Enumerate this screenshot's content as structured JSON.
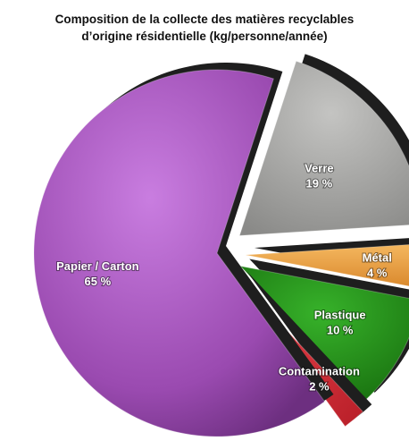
{
  "chart_data": {
    "type": "pie",
    "title_line1": "Composition de la collecte des matières recyclables",
    "title_line2": "d’origine résidentielle (kg/personne/année)",
    "slices": [
      {
        "label": "Papier / Carton",
        "value_label": "65 %",
        "value": 65,
        "color": "#a04fb5"
      },
      {
        "label": "Verre",
        "value_label": "19 %",
        "value": 19,
        "color": "#a3a3a1"
      },
      {
        "label": "Métal",
        "value_label": "4 %",
        "value": 4,
        "color": "#e79a3a"
      },
      {
        "label": "Plastique",
        "value_label": "10 %",
        "value": 10,
        "color": "#1f8a14"
      },
      {
        "label": "Contamination",
        "value_label": "2 %",
        "value": 2,
        "color": "#d9303a"
      }
    ]
  }
}
